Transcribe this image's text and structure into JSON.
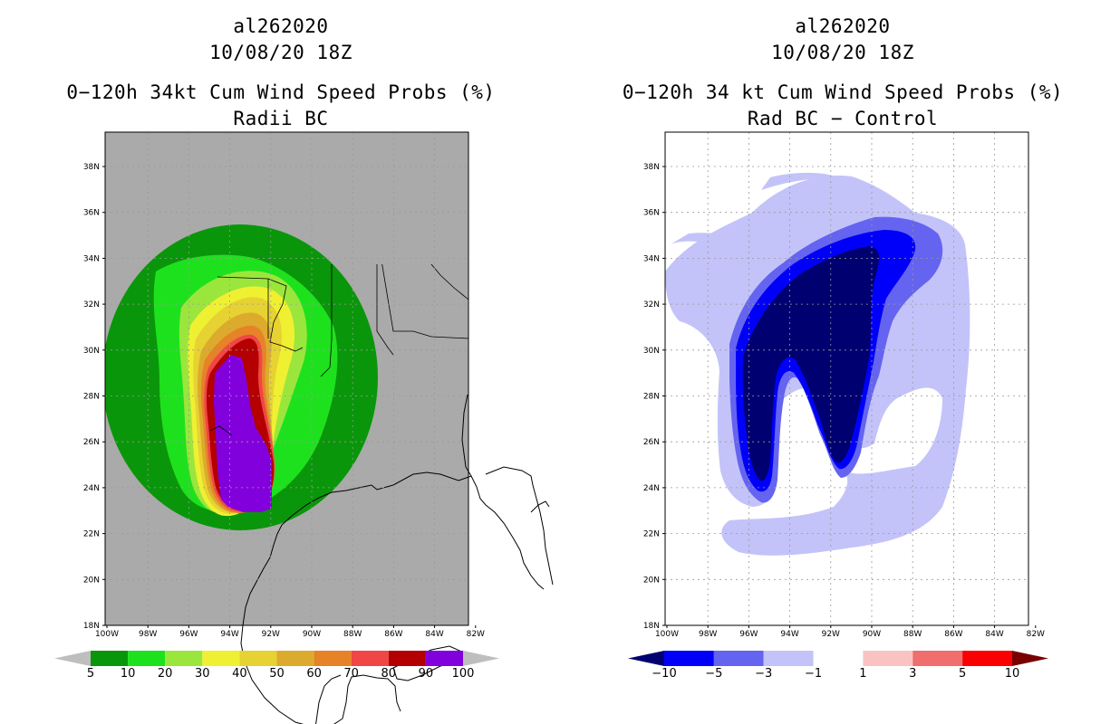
{
  "panels": [
    {
      "id": "left",
      "storm_id": "al262020",
      "datetime": "10/08/20 18Z",
      "title": "0−120h 34kt Cum Wind Speed Probs (%)",
      "subtitle": "Radii BC",
      "colorbar": {
        "labels": [
          "5",
          "10",
          "20",
          "30",
          "40",
          "50",
          "60",
          "70",
          "80",
          "90",
          "100"
        ],
        "colors": [
          "#0a960a",
          "#1ee11e",
          "#9be63c",
          "#f0f032",
          "#e6d232",
          "#dcab2d",
          "#e68228",
          "#f04646",
          "#b40000",
          "#8200dc"
        ],
        "under_color": "#bebebe",
        "over_color": "#bebebe"
      }
    },
    {
      "id": "right",
      "storm_id": "al262020",
      "datetime": "10/08/20 18Z",
      "title": "0−120h 34 kt Cum Wind Speed Probs (%)",
      "subtitle": "Rad BC − Control",
      "colorbar": {
        "labels": [
          "−10",
          "−5",
          "−3",
          "−1",
          "1",
          "3",
          "5",
          "10"
        ],
        "colors": [
          "#0000fa",
          "#6464f0",
          "#c3c3fa",
          "#ffffff",
          "#fac3c3",
          "#f06e6e",
          "#fa0000"
        ],
        "under_color": "#000070",
        "over_color": "#780000"
      }
    }
  ],
  "axes": {
    "lat_labels": [
      "38N",
      "36N",
      "34N",
      "32N",
      "30N",
      "28N",
      "26N",
      "24N",
      "22N",
      "20N",
      "18N"
    ],
    "lon_labels": [
      "100W",
      "98W",
      "96W",
      "94W",
      "92W",
      "90W",
      "88W",
      "86W",
      "84W",
      "82W"
    ]
  },
  "colors": {
    "land_gray": "#aaaaaa",
    "plot_border": "#000000"
  }
}
